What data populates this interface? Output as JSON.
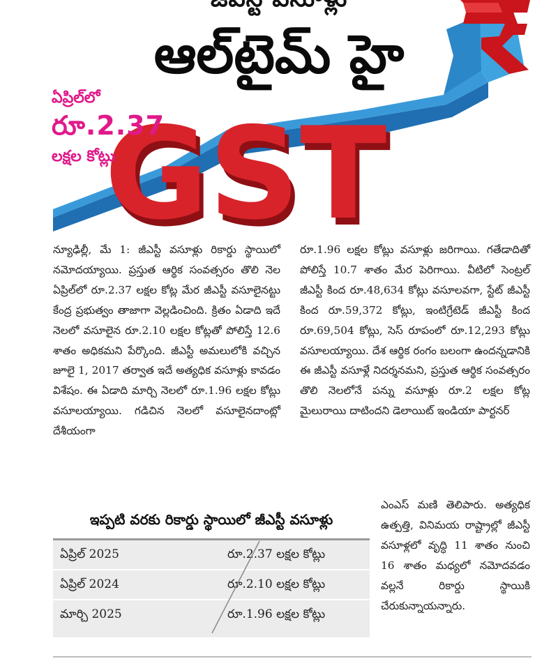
{
  "banner": {
    "kicker": "జీఎస్టీ వసూళ్లు",
    "headline": "ఆల్‌టైమ్ హై",
    "side_line1": "ఏప్రిల్‌లో",
    "side_line2": "రూ.2.37",
    "side_line3": "లక్షల కోట్లు",
    "graphic_text": "GST",
    "rupee_symbol": "₹",
    "colors": {
      "arrow": "#2f86c9",
      "gst_letters": "#d8232a",
      "pink_text": "#e0198a"
    }
  },
  "article": {
    "left_column": "న్యూఢిల్లీ, మే 1: జీఎస్టీ వసూళ్లు రికార్డు స్థాయిలో నమోదయ్యాయి. ప్రస్తుత ఆర్థిక సంవత్సరం తొలి నెల ఏప్రిల్‌లో రూ.2.37 లక్షల కోట్ల మేర జీఎస్టీ వసూలైనట్టు కేంద్ర ప్రభుత్వం తాజాగా వెల్లడించింది. క్రితం ఏడాది ఇదే నెలలో వసూలైన రూ.2.10 లక్షల కోట్లతో పోలిస్తే 12.6 శాతం అధికమని పేర్కొంది. జీఎస్టీ అమలులోకి వచ్చిన జూలై 1, 2017 తర్వాత ఇదే అత్యధిక వసూళ్లు కావడం విశేషం. ఈ ఏడాది మార్చి నెలలో రూ.1.96 లక్షల కోట్లు వసూలయ్యాయి. గడిచిన నెలలో వసూలైనదాంట్లో దేశీయంగా",
    "right_column": "రూ.1.96 లక్షల కోట్లు వసూళ్లు జరిగాయి. గతేడాదితో పోలిస్తే 10.7 శాతం మేర పెరిగాయి. వీటిలో సెంట్రల్ జీఎస్టీ కింద రూ.48,634 కోట్లు వసూలవగా, స్టేట్ జీఎస్టీ కింద రూ.59,372 కోట్లు, ఇంటిగ్రేటెడ్ జీఎస్టీ కింద రూ.69,504 కోట్లు, సెస్ రూపంలో రూ.12,293 కోట్లు వసూలయ్యాయి. దేశ ఆర్థిక రంగం బలంగా ఉందన్నడానికి ఈ జీఎస్టీ వసూళ్లే నిదర్శనమని, ప్రస్తుత ఆర్థిక సంవత్సరం తొలి నెలలోనే పన్ను వసూళ్లు రూ.2 లక్షల కోట్ల మైలురాయి దాటిందని డెలాయిట్ ఇండియా పార్టనర్",
    "bottom_right": "ఎంఎస్ మణి తెలిపారు. అత్యధిక ఉత్పత్తి, వినిమయ రాష్ట్రాల్లో జీఎస్టీ వసూళ్లలో వృద్ధి 11 శాతం నుంచి 16 శాతం మధ్యలో నమోదవడం వల్లనే రికార్డు స్థాయికి చేరుకున్నాయన్నారు."
  },
  "records_box": {
    "title": "ఇప్పటి వరకు రికార్డు స్థాయిలో జీఎస్టీ వసూళ్లు",
    "rows": [
      {
        "period": "ఏప్రిల్ 2025",
        "amount": "రూ.2.37 లక్షల కోట్లు"
      },
      {
        "period": "ఏప్రిల్ 2024",
        "amount": "రూ.2.10 లక్షల కోట్లు"
      },
      {
        "period": "మార్చి 2025",
        "amount": "రూ.1.96 లక్షల కోట్లు"
      }
    ]
  }
}
